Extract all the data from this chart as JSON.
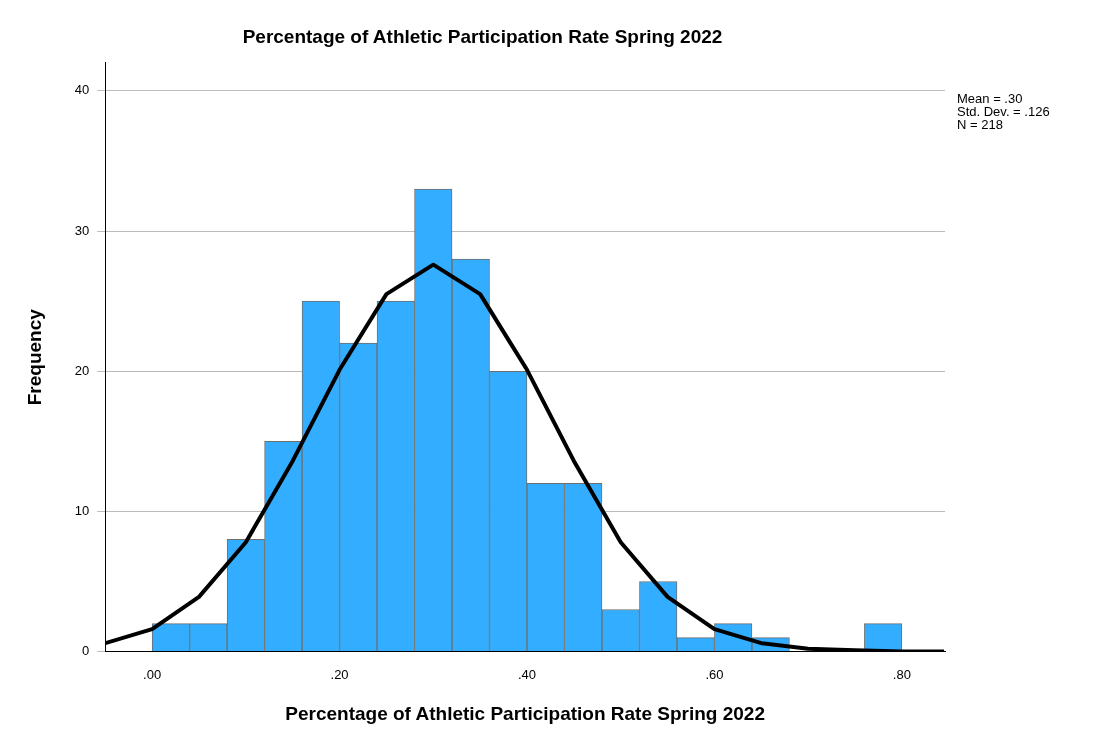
{
  "chart_data": {
    "type": "histogram",
    "title": "Percentage of Athletic Participation Rate Spring 2022",
    "xlabel": "Percentage of Athletic Participation Rate Spring 2022",
    "ylabel": "Frequency",
    "series": [
      {
        "color": "#33adff",
        "bins": [
          0,
          0.04,
          0.08,
          0.12,
          0.16,
          0.2,
          0.24,
          0.28,
          0.32,
          0.36,
          0.4,
          0.44,
          0.48,
          0.52,
          0.56,
          0.6,
          0.64,
          0.68,
          0.72,
          0.76,
          0.8
        ],
        "values": [
          2,
          2,
          8,
          15,
          25,
          22,
          25,
          33,
          28,
          20,
          12,
          12,
          3,
          5,
          1,
          2,
          1,
          0,
          0,
          2
        ]
      },
      {
        "type": "line",
        "color": "#000000",
        "x": [
          -0.05,
          0,
          0.05,
          0.1,
          0.15,
          0.2,
          0.25,
          0.3,
          0.35,
          0.4,
          0.45,
          0.5,
          0.55,
          0.6,
          0.65,
          0.7,
          0.75,
          0.8,
          0.845
        ],
        "values": [
          0.6,
          1.6,
          3.9,
          7.8,
          13.6,
          20.1,
          25.5,
          27.6,
          25.5,
          20.1,
          13.6,
          7.8,
          3.9,
          1.6,
          0.6,
          0.2,
          0.1,
          0,
          0
        ]
      }
    ],
    "xlim": [
      -0.05,
      0.846
    ],
    "xticks": [
      {
        "value": 0,
        "label": ".00"
      },
      {
        "value": 0.2,
        "label": ".20"
      },
      {
        "value": 0.4,
        "label": ".40"
      },
      {
        "value": 0.6,
        "label": ".60"
      },
      {
        "value": 0.8,
        "label": ".80"
      }
    ],
    "ylim": [
      0,
      42
    ],
    "yticks": [
      0,
      10,
      20,
      30,
      40
    ],
    "grid": "y",
    "annotations": [
      "Mean = .30",
      "Std. Dev. = .126",
      "N = 218"
    ]
  }
}
